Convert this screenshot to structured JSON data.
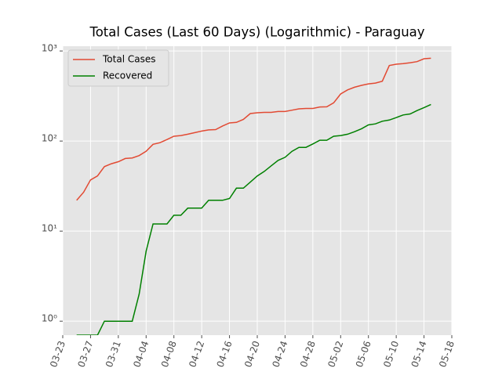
{
  "chart_data": {
    "type": "line",
    "title": "Total Cases (Last 60 Days) (Logarithmic) - Paraguay",
    "x": [
      "03-25",
      "03-26",
      "03-27",
      "03-28",
      "03-29",
      "03-30",
      "03-31",
      "04-01",
      "04-02",
      "04-03",
      "04-04",
      "04-05",
      "04-06",
      "04-07",
      "04-08",
      "04-09",
      "04-10",
      "04-11",
      "04-12",
      "04-13",
      "04-14",
      "04-15",
      "04-16",
      "04-17",
      "04-18",
      "04-19",
      "04-20",
      "04-21",
      "04-22",
      "04-23",
      "04-24",
      "04-25",
      "04-26",
      "04-27",
      "04-28",
      "04-29",
      "04-30",
      "05-01",
      "05-02",
      "05-03",
      "05-04",
      "05-05",
      "05-06",
      "05-07",
      "05-08",
      "05-09",
      "05-10",
      "05-11",
      "05-12",
      "05-13",
      "05-14",
      "05-15"
    ],
    "series": [
      {
        "name": "Total Cases",
        "color": "#e24a33",
        "values": [
          22,
          27,
          37,
          41,
          52,
          56,
          59,
          64,
          65,
          69,
          77,
          92,
          96,
          104,
          113,
          115,
          119,
          124,
          129,
          133,
          134,
          147,
          159,
          161,
          174,
          202,
          206,
          208,
          208,
          213,
          213,
          220,
          228,
          230,
          230,
          239,
          240,
          266,
          333,
          370,
          396,
          415,
          431,
          440,
          462,
          689,
          713,
          724,
          740,
          762,
          820,
          830
        ]
      },
      {
        "name": "Recovered",
        "color": "#008000",
        "values": [
          0,
          0,
          0,
          0,
          1,
          1,
          1,
          1,
          1,
          2,
          6,
          12,
          12,
          12,
          15,
          15,
          18,
          18,
          18,
          22,
          22,
          22,
          23,
          30,
          30,
          35,
          41,
          46,
          53,
          61,
          66,
          77,
          85,
          85,
          93,
          102,
          102,
          113,
          115,
          119,
          127,
          137,
          151,
          155,
          166,
          171,
          182,
          195,
          200,
          218,
          235,
          255
        ]
      }
    ],
    "log_y": true,
    "grid": true,
    "legend": "upper left",
    "xlim": [
      "03-23",
      "05-18"
    ],
    "xticks": [
      "03-23",
      "03-27",
      "03-31",
      "04-04",
      "04-08",
      "04-12",
      "04-16",
      "04-20",
      "04-24",
      "04-28",
      "05-02",
      "05-06",
      "05-10",
      "05-14",
      "05-18"
    ],
    "ylim": [
      0.7,
      1130
    ],
    "yticks": [
      {
        "value": 1,
        "label": "10⁰"
      },
      {
        "value": 10,
        "label": "10¹"
      },
      {
        "value": 100,
        "label": "10²"
      },
      {
        "value": 1000,
        "label": "10³"
      }
    ]
  }
}
